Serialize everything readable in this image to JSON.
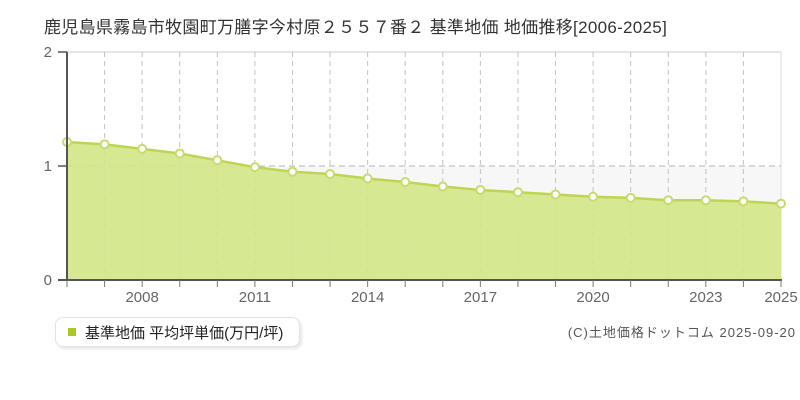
{
  "title": "鹿児島県霧島市牧園町万膳字今村原２５５７番２ 基準地価 地価推移[2006-2025]",
  "legend": {
    "label": "基準地価 平均坪単価(万円/坪)"
  },
  "copyright": "(C)土地価格ドットコム 2025-09-20",
  "chart_data": {
    "type": "area",
    "title": "鹿児島県霧島市牧園町万膳字今村原２５５７番２ 基準地価 地価推移[2006-2025]",
    "series_name": "基準地価 平均坪単価(万円/坪)",
    "unit": "万円/坪",
    "x": [
      2006,
      2007,
      2008,
      2009,
      2010,
      2011,
      2012,
      2013,
      2014,
      2015,
      2016,
      2017,
      2018,
      2019,
      2020,
      2021,
      2022,
      2023,
      2024,
      2025
    ],
    "values": [
      1.21,
      1.19,
      1.15,
      1.11,
      1.05,
      0.99,
      0.95,
      0.93,
      0.89,
      0.86,
      0.82,
      0.79,
      0.77,
      0.75,
      0.73,
      0.72,
      0.7,
      0.7,
      0.69,
      0.67
    ],
    "ylim": [
      0,
      2
    ],
    "yticks": [
      0,
      1,
      2
    ],
    "xtick_labeled_years": [
      2008,
      2011,
      2014,
      2017,
      2020,
      2023,
      2025
    ],
    "grid": true,
    "legend_position": "bottom-left",
    "colors": {
      "area_fill": "#d3e587",
      "line": "#bcd654",
      "marker_fill": "#ffffff",
      "marker_stroke": "#c6dc6c",
      "legend_bullet": "#a8c826",
      "grid_vertical": "#c3c3c3",
      "grid_horizontal": "#b5b5b5",
      "axis": "#555555",
      "tick": "#777777",
      "tick_label": "#666666",
      "lower_band": "#f7f7f7",
      "border_top": "#cccccc",
      "border_right": "#dddddd"
    }
  }
}
